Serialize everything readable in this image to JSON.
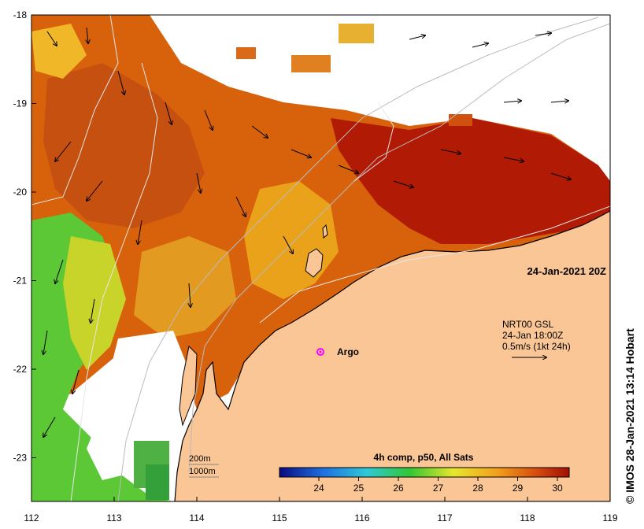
{
  "map": {
    "x_ticks": [
      "112",
      "113",
      "114",
      "115",
      "116",
      "117",
      "118",
      "119"
    ],
    "y_ticks": [
      "-18",
      "-19",
      "-20",
      "-21",
      "-22",
      "-23"
    ],
    "timestamp": "24-Jan-2021 20Z",
    "argo_label": "Argo",
    "current_info": {
      "line1": "NRT00 GSL",
      "line2": "24-Jan 18:00Z",
      "line3": "0.5m/s (1kt 24h)"
    },
    "bathymetry": {
      "label_200": "200m",
      "label_1000": "1000m"
    },
    "colorbar": {
      "title": "4h comp, p50, All Sats",
      "ticks": [
        "24",
        "25",
        "26",
        "27",
        "28",
        "29",
        "30"
      ]
    },
    "credit": "© IMOS 28-Jan-2021 13:14 Hobart",
    "colors": {
      "land": "#fbc696",
      "sst_hot": "#b11a04",
      "sst_warm": "#d8620c",
      "sst_mid": "#e9a21a",
      "sst_cool": "#5cc835",
      "argo": "#ff00ff"
    }
  }
}
